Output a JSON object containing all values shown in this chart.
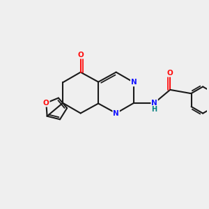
{
  "background_color": "#efefef",
  "bond_color": "#1a1a1a",
  "N_color": "#1414ff",
  "O_color": "#ff0d0d",
  "NH_color": "#008080",
  "figsize": [
    3.0,
    3.0
  ],
  "dpi": 100,
  "xlim": [
    0,
    10
  ],
  "ylim": [
    0,
    10
  ]
}
